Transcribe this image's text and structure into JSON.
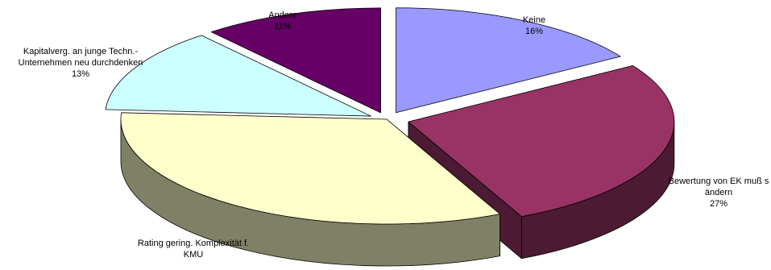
{
  "chart_data": {
    "type": "pie",
    "title": "",
    "exploded": true,
    "three_d": true,
    "slices": [
      {
        "label_lines": [
          "Keine"
        ],
        "value_label": "16%",
        "value": 16,
        "top_color": "#9999FF",
        "side_color": "#4D4D80"
      },
      {
        "label_lines": [
          "Bewertung von EK muß s",
          "ändern"
        ],
        "value_label": "27%",
        "value": 27,
        "top_color": "#993366",
        "side_color": "#4D1A33"
      },
      {
        "label_lines": [
          "Rating gering. Komplexität f.",
          "KMU"
        ],
        "value_label": "",
        "value": 33,
        "top_color": "#FFFFCC",
        "side_color": "#808066"
      },
      {
        "label_lines": [
          "Kapitalverg. an junge Techn.-",
          "Unternehmen neu durchdenken"
        ],
        "value_label": "13%",
        "value": 13,
        "top_color": "#CCFFFF",
        "side_color": "#668080"
      },
      {
        "label_lines": [
          "Andere"
        ],
        "value_label": "11%",
        "value": 11,
        "top_color": "#660066",
        "side_color": "#330033"
      }
    ]
  }
}
